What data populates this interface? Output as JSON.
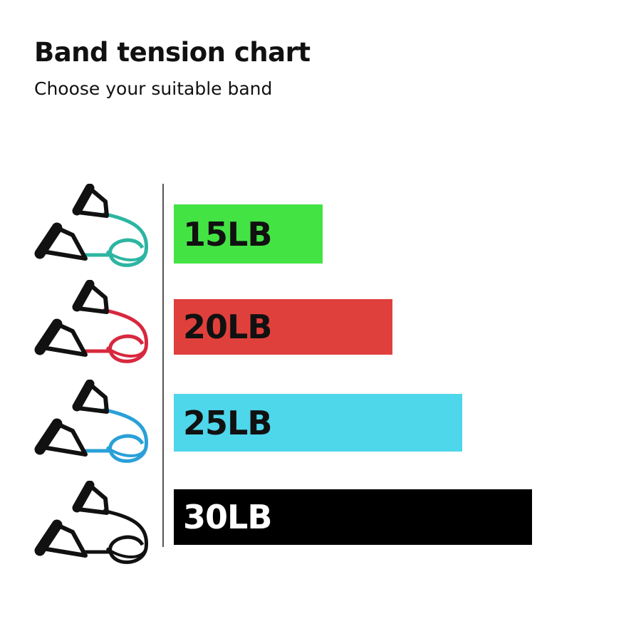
{
  "chart_data": {
    "type": "bar",
    "orientation": "horizontal",
    "title": "Band tension chart",
    "subtitle": "Choose your suitable band",
    "categories": [
      "15LB",
      "20LB",
      "25LB",
      "30LB"
    ],
    "values": [
      15,
      20,
      25,
      30
    ],
    "unit": "LB",
    "bar_colors": [
      "#44e344",
      "#e0403c",
      "#4ed6ea",
      "#000000"
    ],
    "label_colors": [
      "#111111",
      "#111111",
      "#111111",
      "#ffffff"
    ],
    "band_icon_colors": [
      "#2cb5a2",
      "#d8283e",
      "#2aa0d8",
      "#111111"
    ],
    "grid": false,
    "legend": "none"
  }
}
